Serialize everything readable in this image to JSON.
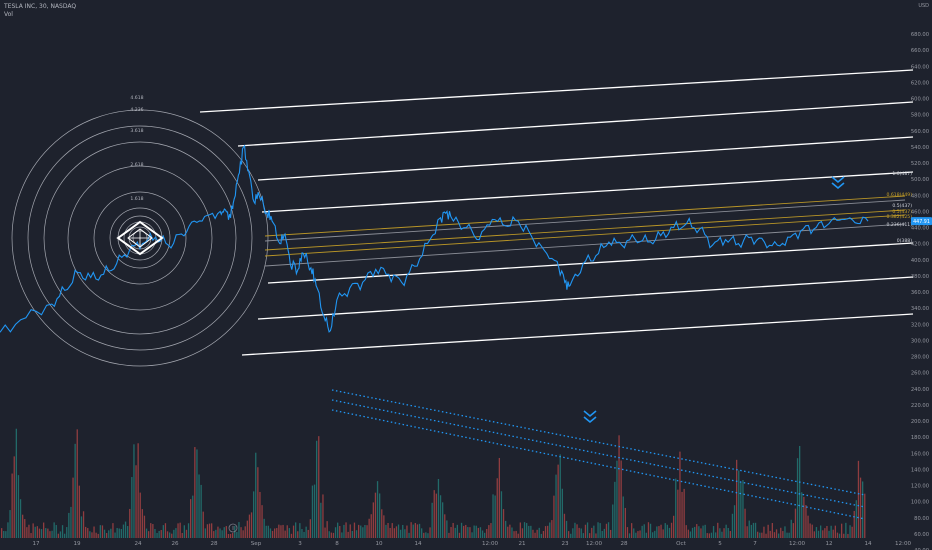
{
  "header": {
    "symbol_line": "TESLA INC, 30, NASDAQ",
    "volume_label": "Vol"
  },
  "currency": "USD",
  "price_badge": "447.91",
  "theme": {
    "background": "#1e222d",
    "price_line": "#2196f3",
    "fib_channel": "#ffffff",
    "fib_gold": "#c9a227",
    "volume_up": "#26a69a",
    "volume_down": "#ef5350",
    "volume_trend": "#2196f3",
    "label": "#b2b5be"
  },
  "icons": [
    "double-chevron-down-icon",
    "double-chevron-down-icon",
    "diamond-pattern-icon",
    "scroll-icon"
  ],
  "chart_data": {
    "type": "line",
    "x_tick_labels": [
      "17",
      "19",
      "24",
      "26",
      "28",
      "Sep",
      "3",
      "8",
      "10",
      "14",
      "12:00",
      "21",
      "23",
      "12:00",
      "28",
      "Oct",
      "5",
      "7",
      "12:00",
      "12",
      "14",
      "12:00"
    ],
    "y_tick_labels": [
      "680.00",
      "660.00",
      "640.00",
      "620.00",
      "600.00",
      "580.00",
      "560.00",
      "540.00",
      "520.00",
      "500.00",
      "480.00",
      "460.00",
      "440.00",
      "420.00",
      "400.00",
      "380.00",
      "360.00",
      "340.00",
      "320.00",
      "300.00",
      "280.00",
      "260.00",
      "240.00",
      "220.00",
      "200.00",
      "180.00",
      "160.00",
      "140.00",
      "120.00",
      "100.00",
      "80.00",
      "60.00",
      "40.00"
    ],
    "ylim": [
      40,
      700
    ],
    "price_series": [
      {
        "t": 0,
        "y": 310
      },
      {
        "t": 2,
        "y": 328
      },
      {
        "t": 4,
        "y": 345
      },
      {
        "t": 5,
        "y": 362
      },
      {
        "t": 6,
        "y": 384
      },
      {
        "t": 7,
        "y": 378
      },
      {
        "t": 8,
        "y": 382
      },
      {
        "t": 9,
        "y": 395
      },
      {
        "t": 10,
        "y": 412
      },
      {
        "t": 11,
        "y": 420
      },
      {
        "t": 12,
        "y": 428
      },
      {
        "t": 13,
        "y": 418
      },
      {
        "t": 14,
        "y": 432
      },
      {
        "t": 15,
        "y": 448
      },
      {
        "t": 16,
        "y": 455
      },
      {
        "t": 17,
        "y": 460
      },
      {
        "t": 17.4,
        "y": 462
      },
      {
        "t": 17.8,
        "y": 452
      },
      {
        "t": 18,
        "y": 470
      },
      {
        "t": 18.4,
        "y": 505
      },
      {
        "t": 18.8,
        "y": 540
      },
      {
        "t": 19.2,
        "y": 510
      },
      {
        "t": 19.6,
        "y": 472
      },
      {
        "t": 20,
        "y": 480
      },
      {
        "t": 20.6,
        "y": 458
      },
      {
        "t": 21,
        "y": 448
      },
      {
        "t": 21.6,
        "y": 420
      },
      {
        "t": 22,
        "y": 432
      },
      {
        "t": 22.4,
        "y": 395
      },
      {
        "t": 23,
        "y": 388
      },
      {
        "t": 23.4,
        "y": 408
      },
      {
        "t": 24,
        "y": 390
      },
      {
        "t": 24.4,
        "y": 368
      },
      {
        "t": 25,
        "y": 330
      },
      {
        "t": 25.5,
        "y": 312
      },
      {
        "t": 26,
        "y": 350
      },
      {
        "t": 27,
        "y": 365
      },
      {
        "t": 28,
        "y": 372
      },
      {
        "t": 29,
        "y": 388
      },
      {
        "t": 30,
        "y": 382
      },
      {
        "t": 31,
        "y": 372
      },
      {
        "t": 32,
        "y": 392
      },
      {
        "t": 33,
        "y": 420
      },
      {
        "t": 34,
        "y": 452
      },
      {
        "t": 34.5,
        "y": 460
      },
      {
        "t": 35,
        "y": 448
      },
      {
        "t": 36,
        "y": 440
      },
      {
        "t": 37,
        "y": 425
      },
      {
        "t": 38,
        "y": 450
      },
      {
        "t": 39,
        "y": 442
      },
      {
        "t": 40,
        "y": 448
      },
      {
        "t": 41,
        "y": 430
      },
      {
        "t": 42,
        "y": 412
      },
      {
        "t": 43,
        "y": 398
      },
      {
        "t": 43.6,
        "y": 372
      },
      {
        "t": 44,
        "y": 368
      },
      {
        "t": 45,
        "y": 395
      },
      {
        "t": 46,
        "y": 405
      },
      {
        "t": 47,
        "y": 422
      },
      {
        "t": 48,
        "y": 418
      },
      {
        "t": 49,
        "y": 426
      },
      {
        "t": 50,
        "y": 422
      },
      {
        "t": 51,
        "y": 430
      },
      {
        "t": 52,
        "y": 440
      },
      {
        "t": 53,
        "y": 445
      },
      {
        "t": 54,
        "y": 438
      },
      {
        "t": 55,
        "y": 418
      },
      {
        "t": 56,
        "y": 425
      },
      {
        "t": 57,
        "y": 420
      },
      {
        "t": 58,
        "y": 428
      },
      {
        "t": 59,
        "y": 422
      },
      {
        "t": 60,
        "y": 418
      },
      {
        "t": 61,
        "y": 428
      },
      {
        "t": 62,
        "y": 438
      },
      {
        "t": 63,
        "y": 440
      },
      {
        "t": 64,
        "y": 445
      },
      {
        "t": 65,
        "y": 450
      },
      {
        "t": 66,
        "y": 446
      },
      {
        "t": 67,
        "y": 448
      }
    ],
    "fib_channel_labels": [
      "4.618",
      "4.236",
      "3.618",
      "2.618",
      "1.618"
    ],
    "fib_levels_right": [
      {
        "label": "1.0(487)",
        "color": "white"
      },
      {
        "label": "0.618(449)",
        "color": "gold"
      },
      {
        "label": "0.5(437)",
        "color": "white"
      },
      {
        "label": "0.5(437)",
        "color": "gold"
      },
      {
        "label": "0.382(425)",
        "color": "gold"
      },
      {
        "label": "0.236(411)",
        "color": "white"
      },
      {
        "label": "0(388)",
        "color": "white"
      }
    ]
  }
}
